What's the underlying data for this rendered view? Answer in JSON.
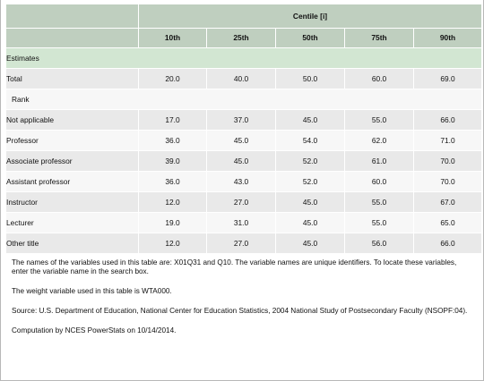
{
  "table": {
    "group_header": "Centile [i]",
    "columns": [
      "10th",
      "25th",
      "50th",
      "75th",
      "90th"
    ],
    "estimates_label": "Estimates",
    "total": {
      "label": "Total",
      "values": [
        "20.0",
        "40.0",
        "50.0",
        "60.0",
        "69.0"
      ]
    },
    "rank_label": "Rank",
    "rows": [
      {
        "label": "Not applicable",
        "values": [
          "17.0",
          "37.0",
          "45.0",
          "55.0",
          "66.0"
        ]
      },
      {
        "label": "Professor",
        "values": [
          "36.0",
          "45.0",
          "54.0",
          "62.0",
          "71.0"
        ]
      },
      {
        "label": "Associate professor",
        "values": [
          "39.0",
          "45.0",
          "52.0",
          "61.0",
          "70.0"
        ]
      },
      {
        "label": "Assistant professor",
        "values": [
          "36.0",
          "43.0",
          "52.0",
          "60.0",
          "70.0"
        ]
      },
      {
        "label": "Instructor",
        "values": [
          "12.0",
          "27.0",
          "45.0",
          "55.0",
          "67.0"
        ]
      },
      {
        "label": "Lecturer",
        "values": [
          "19.0",
          "31.0",
          "45.0",
          "55.0",
          "65.0"
        ]
      },
      {
        "label": "Other title",
        "values": [
          "12.0",
          "27.0",
          "45.0",
          "56.0",
          "66.0"
        ]
      }
    ]
  },
  "notes": {
    "variables": "The names of the variables used in this table are: X01Q31 and Q10. The variable names are unique identifiers. To locate these variables, enter the variable name in the search box.",
    "weight": "The weight variable used in this table is WTA000.",
    "source": "Source: U.S. Department of Education, National Center for Education Statistics, 2004 National Study of Postsecondary Faculty (NSOPF:04).",
    "computation": "Computation by NCES PowerStats on 10/14/2014."
  }
}
